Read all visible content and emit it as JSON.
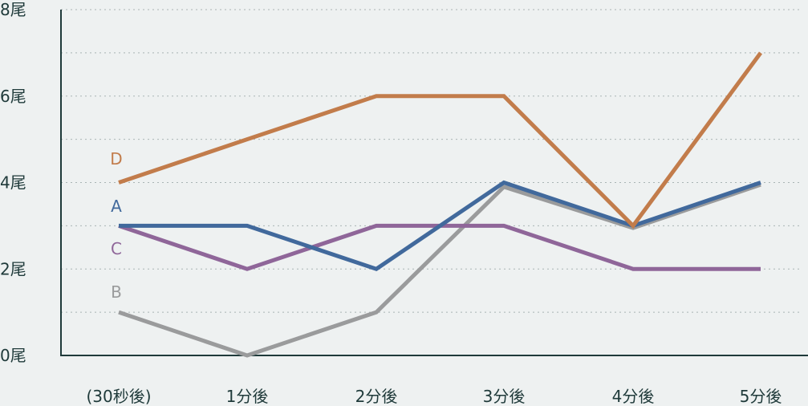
{
  "chart_data": {
    "type": "line",
    "categories": [
      "(30秒後)",
      "1分後",
      "2分後",
      "3分後",
      "4分後",
      "5分後"
    ],
    "y_ticks": [
      {
        "value": 0,
        "label": "0尾"
      },
      {
        "value": 2,
        "label": "2尾"
      },
      {
        "value": 4,
        "label": "4尾"
      },
      {
        "value": 6,
        "label": "6尾"
      },
      {
        "value": 8,
        "label": "8尾"
      }
    ],
    "ylim": [
      0,
      8
    ],
    "grid": true,
    "series": [
      {
        "name": "D",
        "color": "#c27c4b",
        "values": [
          4,
          5,
          6,
          6,
          3,
          7
        ]
      },
      {
        "name": "A",
        "color": "#41699c",
        "values": [
          3,
          3,
          2,
          4,
          3,
          4
        ]
      },
      {
        "name": "C",
        "color": "#8f6699",
        "values": [
          3,
          2,
          3,
          3,
          2,
          2
        ]
      },
      {
        "name": "B",
        "color": "#9a9b9c",
        "values": [
          1,
          0,
          1,
          3.9,
          2.95,
          3.95
        ]
      }
    ],
    "draw_order": [
      "B",
      "C",
      "A",
      "D"
    ]
  }
}
